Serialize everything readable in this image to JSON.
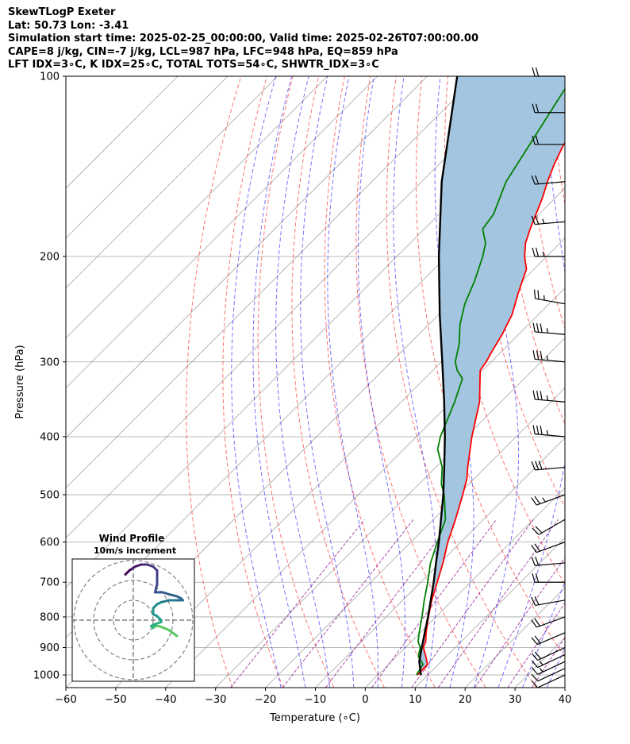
{
  "header": {
    "line1": "SkewTLogP Exeter",
    "line2": "Lat: 50.73   Lon: -3.41",
    "line3": "Simulation start time: 2025-02-25_00:00:00, Valid time: 2025-02-26T07:00:00.00",
    "line4": "CAPE=8 j/kg, CIN=-7 j/kg, LCL=987 hPa, LFC=948 hPa, EQ=859 hPa",
    "line5": "LFT IDX=3∘C, K IDX=25∘C, TOTAL TOTS=54∘C, SHWTR_IDX=3∘C"
  },
  "chart_data": {
    "type": "line",
    "xlabel": "Temperature (∘C)",
    "ylabel": "Pressure (hPa)",
    "xlim": [
      -60,
      40
    ],
    "plim": [
      1050,
      100
    ],
    "yscale": "log",
    "skew": true,
    "xticks": [
      "−60",
      "−50",
      "−40",
      "−30",
      "−20",
      "−10",
      "0",
      "10",
      "20",
      "30",
      "40"
    ],
    "yticks": [
      "1000",
      "900",
      "800",
      "700",
      "600",
      "500",
      "400",
      "300",
      "200",
      "100"
    ],
    "grid": true,
    "series": [
      {
        "color": "#ff0000",
        "points": [
          [
            1000,
            7.9
          ],
          [
            960,
            7.8
          ],
          [
            930,
            5.8
          ],
          [
            900,
            3.6
          ],
          [
            880,
            2.9
          ],
          [
            850,
            1.2
          ],
          [
            800,
            -1.5
          ],
          [
            750,
            -4.2
          ],
          [
            700,
            -6.7
          ],
          [
            650,
            -9.4
          ],
          [
            600,
            -12.6
          ],
          [
            550,
            -15.6
          ],
          [
            500,
            -19.1
          ],
          [
            470,
            -21.5
          ],
          [
            450,
            -23.6
          ],
          [
            400,
            -28.9
          ],
          [
            350,
            -34.3
          ],
          [
            310,
            -40.5
          ],
          [
            300,
            -41.0
          ],
          [
            290,
            -41.8
          ],
          [
            270,
            -43.3
          ],
          [
            250,
            -45.3
          ],
          [
            230,
            -48.4
          ],
          [
            210,
            -51.5
          ],
          [
            200,
            -54.4
          ],
          [
            190,
            -56.9
          ],
          [
            180,
            -58.8
          ],
          [
            170,
            -60.6
          ],
          [
            160,
            -62.5
          ],
          [
            150,
            -64.8
          ],
          [
            140,
            -67.0
          ],
          [
            130,
            -69.0
          ],
          [
            120,
            -69.7
          ],
          [
            110,
            -72.3
          ],
          [
            100,
            -75.3
          ]
        ]
      },
      {
        "color": "#008000",
        "points": [
          [
            1000,
            7.7
          ],
          [
            960,
            6.9
          ],
          [
            930,
            4.3
          ],
          [
            900,
            3.0
          ],
          [
            880,
            1.4
          ],
          [
            850,
            -0.2
          ],
          [
            800,
            -2.8
          ],
          [
            750,
            -5.7
          ],
          [
            700,
            -8.6
          ],
          [
            650,
            -11.9
          ],
          [
            600,
            -14.7
          ],
          [
            550,
            -17.6
          ],
          [
            500,
            -22.8
          ],
          [
            480,
            -25.5
          ],
          [
            450,
            -28.7
          ],
          [
            420,
            -33.2
          ],
          [
            400,
            -35.2
          ],
          [
            350,
            -39.3
          ],
          [
            320,
            -42.4
          ],
          [
            310,
            -45.1
          ],
          [
            300,
            -47.2
          ],
          [
            280,
            -50.0
          ],
          [
            260,
            -53.7
          ],
          [
            240,
            -56.9
          ],
          [
            220,
            -59.5
          ],
          [
            200,
            -62.8
          ],
          [
            190,
            -64.9
          ],
          [
            180,
            -68.3
          ],
          [
            170,
            -69.1
          ],
          [
            150,
            -73.1
          ],
          [
            130,
            -75.8
          ],
          [
            110,
            -79.0
          ],
          [
            100,
            -80.8
          ]
        ]
      },
      {
        "color": "#000000",
        "points": [
          [
            1000,
            8.6
          ],
          [
            950,
            5.6
          ],
          [
            900,
            3.3
          ],
          [
            850,
            0.9
          ],
          [
            800,
            -1.6
          ],
          [
            750,
            -4.4
          ],
          [
            700,
            -7.4
          ],
          [
            650,
            -10.8
          ],
          [
            600,
            -14.4
          ],
          [
            550,
            -18.5
          ],
          [
            500,
            -23.0
          ],
          [
            450,
            -28.3
          ],
          [
            400,
            -34.3
          ],
          [
            350,
            -41.4
          ],
          [
            300,
            -49.8
          ],
          [
            250,
            -59.8
          ],
          [
            200,
            -71.6
          ],
          [
            150,
            -86.0
          ],
          [
            100,
            -104.0
          ]
        ]
      }
    ],
    "shading": {
      "color": "#a3c5df"
    },
    "dry_adiabat_color": "#ff0000",
    "moist_adiabat_color": "#0000ff",
    "mixing_ratio_color": "#800080",
    "isotherm_color": "#808080",
    "barbs": [
      {
        "p": 1000,
        "speed": 10,
        "dir": 245
      },
      {
        "p": 975,
        "speed": 12,
        "dir": 245
      },
      {
        "p": 950,
        "speed": 15,
        "dir": 245
      },
      {
        "p": 925,
        "speed": 17,
        "dir": 245
      },
      {
        "p": 900,
        "speed": 20,
        "dir": 245
      },
      {
        "p": 850,
        "speed": 20,
        "dir": 247
      },
      {
        "p": 800,
        "speed": 20,
        "dir": 250
      },
      {
        "p": 750,
        "speed": 20,
        "dir": 260
      },
      {
        "p": 700,
        "speed": 20,
        "dir": 270
      },
      {
        "p": 650,
        "speed": 20,
        "dir": 265
      },
      {
        "p": 600,
        "speed": 20,
        "dir": 250
      },
      {
        "p": 550,
        "speed": 20,
        "dir": 240
      },
      {
        "p": 500,
        "speed": 25,
        "dir": 250
      },
      {
        "p": 450,
        "speed": 30,
        "dir": 265
      },
      {
        "p": 400,
        "speed": 35,
        "dir": 275
      },
      {
        "p": 350,
        "speed": 35,
        "dir": 275
      },
      {
        "p": 300,
        "speed": 35,
        "dir": 275
      },
      {
        "p": 270,
        "speed": 35,
        "dir": 275
      },
      {
        "p": 240,
        "speed": 25,
        "dir": 280
      },
      {
        "p": 200,
        "speed": 25,
        "dir": 270
      },
      {
        "p": 175,
        "speed": 25,
        "dir": 265
      },
      {
        "p": 150,
        "speed": 20,
        "dir": 265
      },
      {
        "p": 130,
        "speed": 20,
        "dir": 270
      },
      {
        "p": 115,
        "speed": 20,
        "dir": 270
      },
      {
        "p": 100,
        "speed": 20,
        "dir": 270
      }
    ],
    "hodograph": {
      "title": "Wind Profile",
      "subtitle": "10m/s increment",
      "rings": [
        10,
        20,
        30
      ],
      "points": [
        [
          22,
          -8
        ],
        [
          18,
          -5
        ],
        [
          13,
          -3
        ],
        [
          11,
          -3
        ],
        [
          10,
          -4
        ],
        [
          9,
          -3
        ],
        [
          11,
          -2
        ],
        [
          14,
          -1
        ],
        [
          14,
          0
        ],
        [
          12,
          2
        ],
        [
          10,
          3
        ],
        [
          10,
          6
        ],
        [
          12,
          8
        ],
        [
          14,
          9
        ],
        [
          18,
          10
        ],
        [
          22,
          10
        ],
        [
          25,
          10
        ],
        [
          24,
          11
        ],
        [
          22,
          12
        ],
        [
          18,
          13
        ],
        [
          15,
          14
        ],
        [
          11,
          14
        ],
        [
          12,
          18
        ],
        [
          12,
          22
        ],
        [
          12,
          25
        ],
        [
          10,
          27
        ],
        [
          7,
          28
        ],
        [
          4,
          28
        ],
        [
          1,
          27
        ],
        [
          -2,
          25
        ],
        [
          -3,
          24
        ],
        [
          -4,
          23
        ]
      ],
      "colors": [
        "#5ac865",
        "#3cbc74",
        "#29af7f",
        "#20a386",
        "#1f968b",
        "#238a8d",
        "#277d8e",
        "#2c718e",
        "#31668e",
        "#365c8d",
        "#3e4989",
        "#443a83",
        "#472d7b",
        "#48186a",
        "#440154"
      ]
    }
  }
}
